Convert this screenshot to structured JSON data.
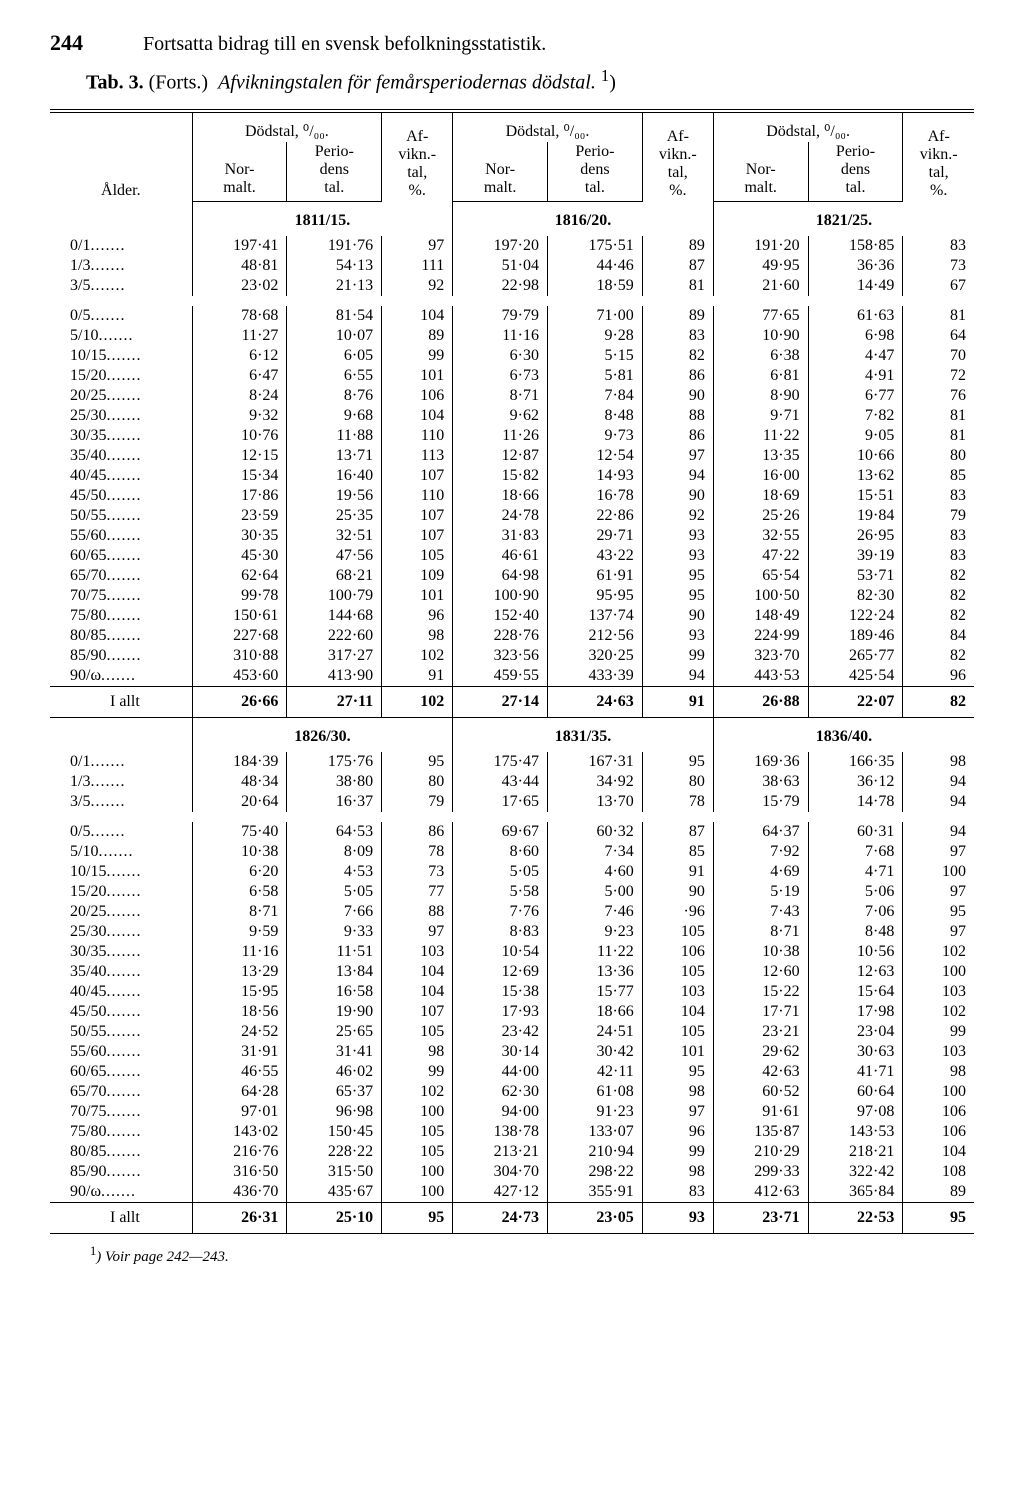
{
  "page_number": "244",
  "running_title": "Fortsatta bidrag till en svensk befolkningsstatistik.",
  "caption_label": "Tab. 3.",
  "caption_cont": "(Forts.)",
  "caption_title": "Afvikningstalen för femårsperiodernas dödstal.",
  "caption_note_mark": "1",
  "head": {
    "age": "Ålder.",
    "dodstal": "Dödstal, ⁰/₀₀.",
    "normalt": "Nor-\nmalt.",
    "periodens": "Perio-\ndens\ntal.",
    "afvikn": "Af-\nvikn.-\ntal,\n%."
  },
  "blocks": [
    {
      "periods": [
        "1811/15.",
        "1816/20.",
        "1821/25."
      ],
      "rows": [
        [
          "0/1",
          "197·41",
          "191·76",
          "97",
          "197·20",
          "175·51",
          "89",
          "191·20",
          "158·85",
          "83"
        ],
        [
          "1/3",
          "48·81",
          "54·13",
          "111",
          "51·04",
          "44·46",
          "87",
          "49·95",
          "36·36",
          "73"
        ],
        [
          "3/5",
          "23·02",
          "21·13",
          "92",
          "22·98",
          "18·59",
          "81",
          "21·60",
          "14·49",
          "67"
        ],
        [
          "",
          "",
          "",
          "",
          "",
          "",
          "",
          "",
          "",
          ""
        ],
        [
          "0/5",
          "78·68",
          "81·54",
          "104",
          "79·79",
          "71·00",
          "89",
          "77·65",
          "61·63",
          "81"
        ],
        [
          "5/10",
          "11·27",
          "10·07",
          "89",
          "11·16",
          "9·28",
          "83",
          "10·90",
          "6·98",
          "64"
        ],
        [
          "10/15",
          "6·12",
          "6·05",
          "99",
          "6·30",
          "5·15",
          "82",
          "6·38",
          "4·47",
          "70"
        ],
        [
          "15/20",
          "6·47",
          "6·55",
          "101",
          "6·73",
          "5·81",
          "86",
          "6·81",
          "4·91",
          "72"
        ],
        [
          "20/25",
          "8·24",
          "8·76",
          "106",
          "8·71",
          "7·84",
          "90",
          "8·90",
          "6·77",
          "76"
        ],
        [
          "25/30",
          "9·32",
          "9·68",
          "104",
          "9·62",
          "8·48",
          "88",
          "9·71",
          "7·82",
          "81"
        ],
        [
          "30/35",
          "10·76",
          "11·88",
          "110",
          "11·26",
          "9·73",
          "86",
          "11·22",
          "9·05",
          "81"
        ],
        [
          "35/40",
          "12·15",
          "13·71",
          "113",
          "12·87",
          "12·54",
          "97",
          "13·35",
          "10·66",
          "80"
        ],
        [
          "40/45",
          "15·34",
          "16·40",
          "107",
          "15·82",
          "14·93",
          "94",
          "16·00",
          "13·62",
          "85"
        ],
        [
          "45/50",
          "17·86",
          "19·56",
          "110",
          "18·66",
          "16·78",
          "90",
          "18·69",
          "15·51",
          "83"
        ],
        [
          "50/55",
          "23·59",
          "25·35",
          "107",
          "24·78",
          "22·86",
          "92",
          "25·26",
          "19·84",
          "79"
        ],
        [
          "55/60",
          "30·35",
          "32·51",
          "107",
          "31·83",
          "29·71",
          "93",
          "32·55",
          "26·95",
          "83"
        ],
        [
          "60/65",
          "45·30",
          "47·56",
          "105",
          "46·61",
          "43·22",
          "93",
          "47·22",
          "39·19",
          "83"
        ],
        [
          "65/70",
          "62·64",
          "68·21",
          "109",
          "64·98",
          "61·91",
          "95",
          "65·54",
          "53·71",
          "82"
        ],
        [
          "70/75",
          "99·78",
          "100·79",
          "101",
          "100·90",
          "95·95",
          "95",
          "100·50",
          "82·30",
          "82"
        ],
        [
          "75/80",
          "150·61",
          "144·68",
          "96",
          "152·40",
          "137·74",
          "90",
          "148·49",
          "122·24",
          "82"
        ],
        [
          "80/85",
          "227·68",
          "222·60",
          "98",
          "228·76",
          "212·56",
          "93",
          "224·99",
          "189·46",
          "84"
        ],
        [
          "85/90",
          "310·88",
          "317·27",
          "102",
          "323·56",
          "320·25",
          "99",
          "323·70",
          "265·77",
          "82"
        ],
        [
          "90/ω",
          "453·60",
          "413·90",
          "91",
          "459·55",
          "433·39",
          "94",
          "443·53",
          "425·54",
          "96"
        ]
      ],
      "total": [
        "I allt",
        "26·66",
        "27·11",
        "102",
        "27·14",
        "24·63",
        "91",
        "26·88",
        "22·07",
        "82"
      ]
    },
    {
      "periods": [
        "1826/30.",
        "1831/35.",
        "1836/40."
      ],
      "rows": [
        [
          "0/1",
          "184·39",
          "175·76",
          "95",
          "175·47",
          "167·31",
          "95",
          "169·36",
          "166·35",
          "98"
        ],
        [
          "1/3",
          "48·34",
          "38·80",
          "80",
          "43·44",
          "34·92",
          "80",
          "38·63",
          "36·12",
          "94"
        ],
        [
          "3/5",
          "20·64",
          "16·37",
          "79",
          "17·65",
          "13·70",
          "78",
          "15·79",
          "14·78",
          "94"
        ],
        [
          "",
          "",
          "",
          "",
          "",
          "",
          "",
          "",
          "",
          ""
        ],
        [
          "0/5",
          "75·40",
          "64·53",
          "86",
          "69·67",
          "60·32",
          "87",
          "64·37",
          "60·31",
          "94"
        ],
        [
          "5/10",
          "10·38",
          "8·09",
          "78",
          "8·60",
          "7·34",
          "85",
          "7·92",
          "7·68",
          "97"
        ],
        [
          "10/15",
          "6·20",
          "4·53",
          "73",
          "5·05",
          "4·60",
          "91",
          "4·69",
          "4·71",
          "100"
        ],
        [
          "15/20",
          "6·58",
          "5·05",
          "77",
          "5·58",
          "5·00",
          "90",
          "5·19",
          "5·06",
          "97"
        ],
        [
          "20/25",
          "8·71",
          "7·66",
          "88",
          "7·76",
          "7·46",
          "·96",
          "7·43",
          "7·06",
          "95"
        ],
        [
          "25/30",
          "9·59",
          "9·33",
          "97",
          "8·83",
          "9·23",
          "105",
          "8·71",
          "8·48",
          "97"
        ],
        [
          "30/35",
          "11·16",
          "11·51",
          "103",
          "10·54",
          "11·22",
          "106",
          "10·38",
          "10·56",
          "102"
        ],
        [
          "35/40",
          "13·29",
          "13·84",
          "104",
          "12·69",
          "13·36",
          "105",
          "12·60",
          "12·63",
          "100"
        ],
        [
          "40/45",
          "15·95",
          "16·58",
          "104",
          "15·38",
          "15·77",
          "103",
          "15·22",
          "15·64",
          "103"
        ],
        [
          "45/50",
          "18·56",
          "19·90",
          "107",
          "17·93",
          "18·66",
          "104",
          "17·71",
          "17·98",
          "102"
        ],
        [
          "50/55",
          "24·52",
          "25·65",
          "105",
          "23·42",
          "24·51",
          "105",
          "23·21",
          "23·04",
          "99"
        ],
        [
          "55/60",
          "31·91",
          "31·41",
          "98",
          "30·14",
          "30·42",
          "101",
          "29·62",
          "30·63",
          "103"
        ],
        [
          "60/65",
          "46·55",
          "46·02",
          "99",
          "44·00",
          "42·11",
          "95",
          "42·63",
          "41·71",
          "98"
        ],
        [
          "65/70",
          "64·28",
          "65·37",
          "102",
          "62·30",
          "61·08",
          "98",
          "60·52",
          "60·64",
          "100"
        ],
        [
          "70/75",
          "97·01",
          "96·98",
          "100",
          "94·00",
          "91·23",
          "97",
          "91·61",
          "97·08",
          "106"
        ],
        [
          "75/80",
          "143·02",
          "150·45",
          "105",
          "138·78",
          "133·07",
          "96",
          "135·87",
          "143·53",
          "106"
        ],
        [
          "80/85",
          "216·76",
          "228·22",
          "105",
          "213·21",
          "210·94",
          "99",
          "210·29",
          "218·21",
          "104"
        ],
        [
          "85/90",
          "316·50",
          "315·50",
          "100",
          "304·70",
          "298·22",
          "98",
          "299·33",
          "322·42",
          "108"
        ],
        [
          "90/ω",
          "436·70",
          "435·67",
          "100",
          "427·12",
          "355·91",
          "83",
          "412·63",
          "365·84",
          "89"
        ]
      ],
      "total": [
        "I allt",
        "26·31",
        "25·10",
        "95",
        "24·73",
        "23·05",
        "93",
        "23·71",
        "22·53",
        "95"
      ]
    }
  ],
  "footnote": "Voir page 242—243."
}
